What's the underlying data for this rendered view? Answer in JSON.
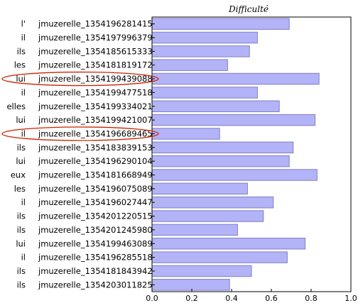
{
  "chart_data": {
    "type": "bar",
    "orientation": "horizontal",
    "title": "Difficulté",
    "xlabel": "",
    "ylabel": "",
    "xlim": [
      0.0,
      1.0
    ],
    "xticks": [
      "0.0",
      "0.2",
      "0.4",
      "0.6",
      "0.8",
      "1.0"
    ],
    "grid": false,
    "bar_color": "#b3b3f7",
    "bar_edge_color": "#8080c8",
    "highlight_color": "#cc2200",
    "categories": [
      {
        "pronoun": "l'",
        "id": "jmuzerelle_1354196281415"
      },
      {
        "pronoun": "il",
        "id": "jmuzerelle_1354197996379"
      },
      {
        "pronoun": "ils",
        "id": "jmuzerelle_1354185615333"
      },
      {
        "pronoun": "les",
        "id": "jmuzerelle_1354181819172"
      },
      {
        "pronoun": "lui",
        "id": "jmuzerelle_1354199439088"
      },
      {
        "pronoun": "il",
        "id": "jmuzerelle_1354199477518"
      },
      {
        "pronoun": "elles",
        "id": "jmuzerelle_1354199334021"
      },
      {
        "pronoun": "lui",
        "id": "jmuzerelle_1354199421007"
      },
      {
        "pronoun": "il",
        "id": "jmuzerelle_1354196689465"
      },
      {
        "pronoun": "ils",
        "id": "jmuzerelle_1354183839153"
      },
      {
        "pronoun": "lui",
        "id": "jmuzerelle_1354196290104"
      },
      {
        "pronoun": "eux",
        "id": "jmuzerelle_1354181668949"
      },
      {
        "pronoun": "les",
        "id": "jmuzerelle_1354196075089"
      },
      {
        "pronoun": "il",
        "id": "jmuzerelle_1354196027447"
      },
      {
        "pronoun": "ils",
        "id": "jmuzerelle_1354201220515"
      },
      {
        "pronoun": "ils",
        "id": "jmuzerelle_1354201245980"
      },
      {
        "pronoun": "lui",
        "id": "jmuzerelle_1354199463089"
      },
      {
        "pronoun": "il",
        "id": "jmuzerelle_1354196285518"
      },
      {
        "pronoun": "ils",
        "id": "jmuzerelle_1354181843942"
      },
      {
        "pronoun": "ils",
        "id": "jmuzerelle_1354203011825"
      }
    ],
    "values": [
      0.69,
      0.53,
      0.49,
      0.38,
      0.84,
      0.53,
      0.64,
      0.82,
      0.34,
      0.71,
      0.69,
      0.83,
      0.48,
      0.61,
      0.56,
      0.43,
      0.77,
      0.68,
      0.5,
      0.39
    ],
    "highlighted": [
      "jmuzerelle_1354199439088",
      "jmuzerelle_1354196689465"
    ]
  }
}
